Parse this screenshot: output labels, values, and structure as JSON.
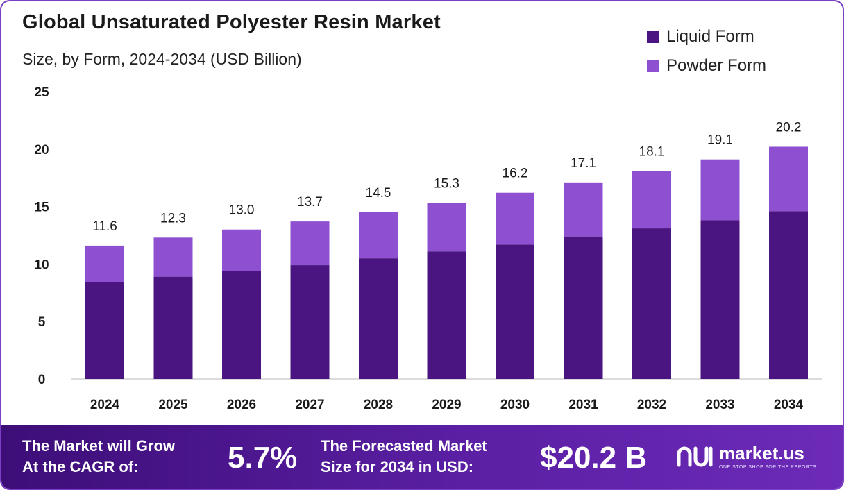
{
  "header": {
    "title": "Global Unsaturated Polyester Resin Market",
    "subtitle": "Size, by Form, 2024-2034 (USD Billion)"
  },
  "legend": [
    {
      "label": "Liquid Form",
      "color": "#4a1580"
    },
    {
      "label": "Powder Form",
      "color": "#8e4fd0"
    }
  ],
  "chart_data": {
    "type": "bar",
    "stacked": true,
    "categories": [
      "2024",
      "2025",
      "2026",
      "2027",
      "2028",
      "2029",
      "2030",
      "2031",
      "2032",
      "2033",
      "2034"
    ],
    "series": [
      {
        "name": "Liquid Form",
        "color": "#4a1580",
        "values": [
          8.4,
          8.9,
          9.4,
          9.9,
          10.5,
          11.1,
          11.7,
          12.4,
          13.1,
          13.8,
          14.6
        ]
      },
      {
        "name": "Powder Form",
        "color": "#8e4fd0",
        "values": [
          3.2,
          3.4,
          3.6,
          3.8,
          4.0,
          4.2,
          4.5,
          4.7,
          5.0,
          5.3,
          5.6
        ]
      }
    ],
    "totals": [
      "11.6",
      "12.3",
      "13.0",
      "13.7",
      "14.5",
      "15.3",
      "16.2",
      "17.1",
      "18.1",
      "19.1",
      "20.2"
    ],
    "ylim": [
      0,
      25
    ],
    "yticks": [
      "0",
      "5",
      "10",
      "15",
      "20",
      "25"
    ],
    "grid": false,
    "legend_position": "top-right"
  },
  "footer": {
    "cagr_label_line1": "The Market will Grow",
    "cagr_label_line2": "At the CAGR of:",
    "cagr_value": "5.7%",
    "forecast_label_line1": "The Forecasted Market",
    "forecast_label_line2": "Size for 2034 in USD:",
    "forecast_value": "$20.2 B",
    "brand_name": "market.us",
    "brand_tagline": "ONE STOP SHOP FOR THE REPORTS"
  }
}
